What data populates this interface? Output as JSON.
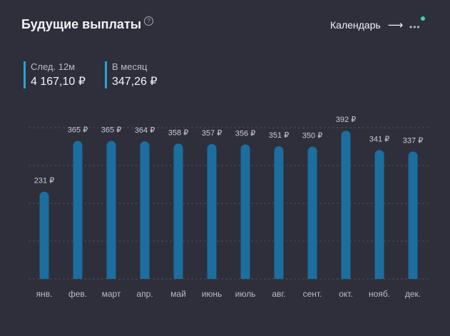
{
  "header": {
    "title": "Будущие выплаты",
    "help_icon": "question-circle-icon",
    "calendar_label": "Календарь",
    "calendar_icon": "arrow-right-icon",
    "more_icon": "more-dots-icon"
  },
  "stats": [
    {
      "label": "След. 12м",
      "value": "4 167,10 ₽"
    },
    {
      "label": "В месяц",
      "value": "347,26 ₽"
    }
  ],
  "colors": {
    "bar": "#1c6e9e",
    "accent": "#2aa3d4",
    "grid": "#4a4c5a",
    "notification": "#47d0a9"
  },
  "chart_data": {
    "type": "bar",
    "categories": [
      "янв.",
      "фев.",
      "март",
      "апр.",
      "май",
      "июнь",
      "июль",
      "авг.",
      "сент.",
      "окт.",
      "нояб.",
      "дек."
    ],
    "values": [
      231,
      365,
      365,
      364,
      358,
      357,
      356,
      351,
      350,
      392,
      341,
      337
    ],
    "value_labels": [
      "231 ₽",
      "365 ₽",
      "365 ₽",
      "364 ₽",
      "358 ₽",
      "357 ₽",
      "356 ₽",
      "351 ₽",
      "350 ₽",
      "392 ₽",
      "341 ₽",
      "337 ₽"
    ],
    "ylim": [
      0,
      400
    ],
    "grid": true
  }
}
